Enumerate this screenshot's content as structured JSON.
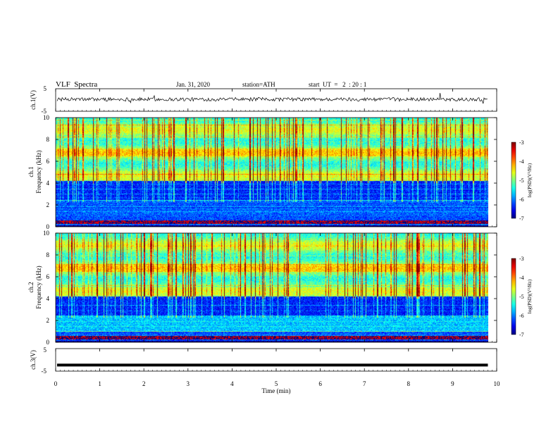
{
  "header": {
    "title": "VLF  Spectra",
    "date": "Jan. 31, 2020",
    "station": "station=ATH",
    "start": "start  UT  =   2  : 20 : 1"
  },
  "chart_data": [
    {
      "type": "line",
      "name": "ch1-waveform",
      "ylabel": "ch.1(V)",
      "ylim": [
        -5,
        5
      ],
      "yticks": [
        "5",
        "-5"
      ],
      "xlim": [
        0,
        10
      ],
      "description_level": 0.3
    },
    {
      "type": "heatmap",
      "name": "ch1-spectrogram",
      "ylabel": "ch.1\nFrequency  (kHz)",
      "ylabel_line1": "ch.1",
      "ylabel_line2": "Frequency  (kHz)",
      "ylim": [
        0,
        10
      ],
      "yticks": [
        "0",
        "2",
        "4",
        "6",
        "8",
        "10"
      ],
      "xlim": [
        0,
        10
      ],
      "colorbar": {
        "label": "log(PSD)(V²/Hz)",
        "range": [
          -7,
          -3
        ],
        "ticks": [
          "-3",
          "-4",
          "-5",
          "-6",
          "-7"
        ]
      }
    },
    {
      "type": "heatmap",
      "name": "ch2-spectrogram",
      "ylabel_line1": "ch.2",
      "ylabel_line2": "Frequency  (kHz)",
      "ylim": [
        0,
        10
      ],
      "yticks": [
        "0",
        "2",
        "4",
        "6",
        "8",
        "10"
      ],
      "xlim": [
        0,
        10
      ],
      "colorbar": {
        "label": "log(PSD)(V²/Hz)",
        "range": [
          -7,
          -3
        ],
        "ticks": [
          "-3",
          "-4",
          "-5",
          "-6",
          "-7"
        ]
      }
    },
    {
      "type": "line",
      "name": "ch3-waveform",
      "ylabel": "ch.3(V)",
      "ylim": [
        -5,
        5
      ],
      "yticks": [
        "5",
        "-5"
      ],
      "xlim": [
        0,
        10
      ],
      "constant_level": -2.3
    }
  ],
  "xaxis": {
    "label": "Time  (min)",
    "ticks": [
      "0",
      "1",
      "2",
      "3",
      "4",
      "5",
      "6",
      "7",
      "8",
      "9",
      "10"
    ],
    "data_end": 9.8
  },
  "colors": {
    "ink": "#000000",
    "frame": "#666666"
  }
}
